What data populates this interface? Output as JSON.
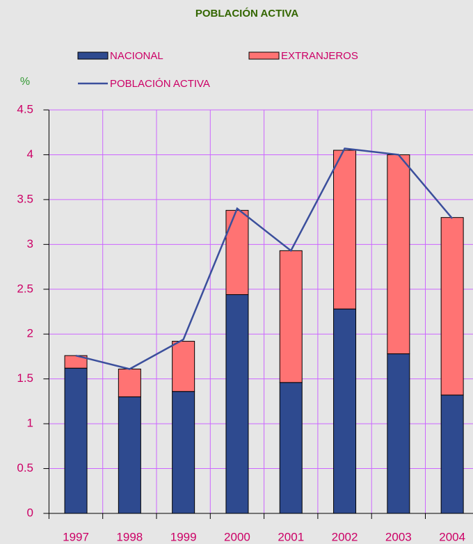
{
  "chart_data": {
    "type": "bar",
    "stacked": true,
    "title": "POBLACIÓN ACTIVA",
    "y_label": "%",
    "categories": [
      "1997",
      "1998",
      "1999",
      "2000",
      "2001",
      "2002",
      "2003",
      "2004"
    ],
    "series": [
      {
        "name": "NACIONAL",
        "color": "#2e4a8f",
        "values": [
          1.62,
          1.3,
          1.36,
          2.44,
          1.46,
          2.28,
          1.78,
          1.32
        ]
      },
      {
        "name": "EXTRANJEROS",
        "color": "#ff7373",
        "values": [
          0.14,
          0.31,
          0.56,
          0.94,
          1.47,
          1.77,
          2.22,
          1.98
        ]
      },
      {
        "name": "POBLACIÓN ACTIVA",
        "type": "line",
        "color": "#3b4f9c",
        "values": [
          1.76,
          1.61,
          1.94,
          3.4,
          2.93,
          4.07,
          4.0,
          3.29
        ]
      }
    ],
    "ylim": [
      0,
      4.5
    ],
    "yticks": [
      0,
      0.5,
      1,
      1.5,
      2,
      2.5,
      3,
      3.5,
      4,
      4.5
    ],
    "grid": true
  }
}
